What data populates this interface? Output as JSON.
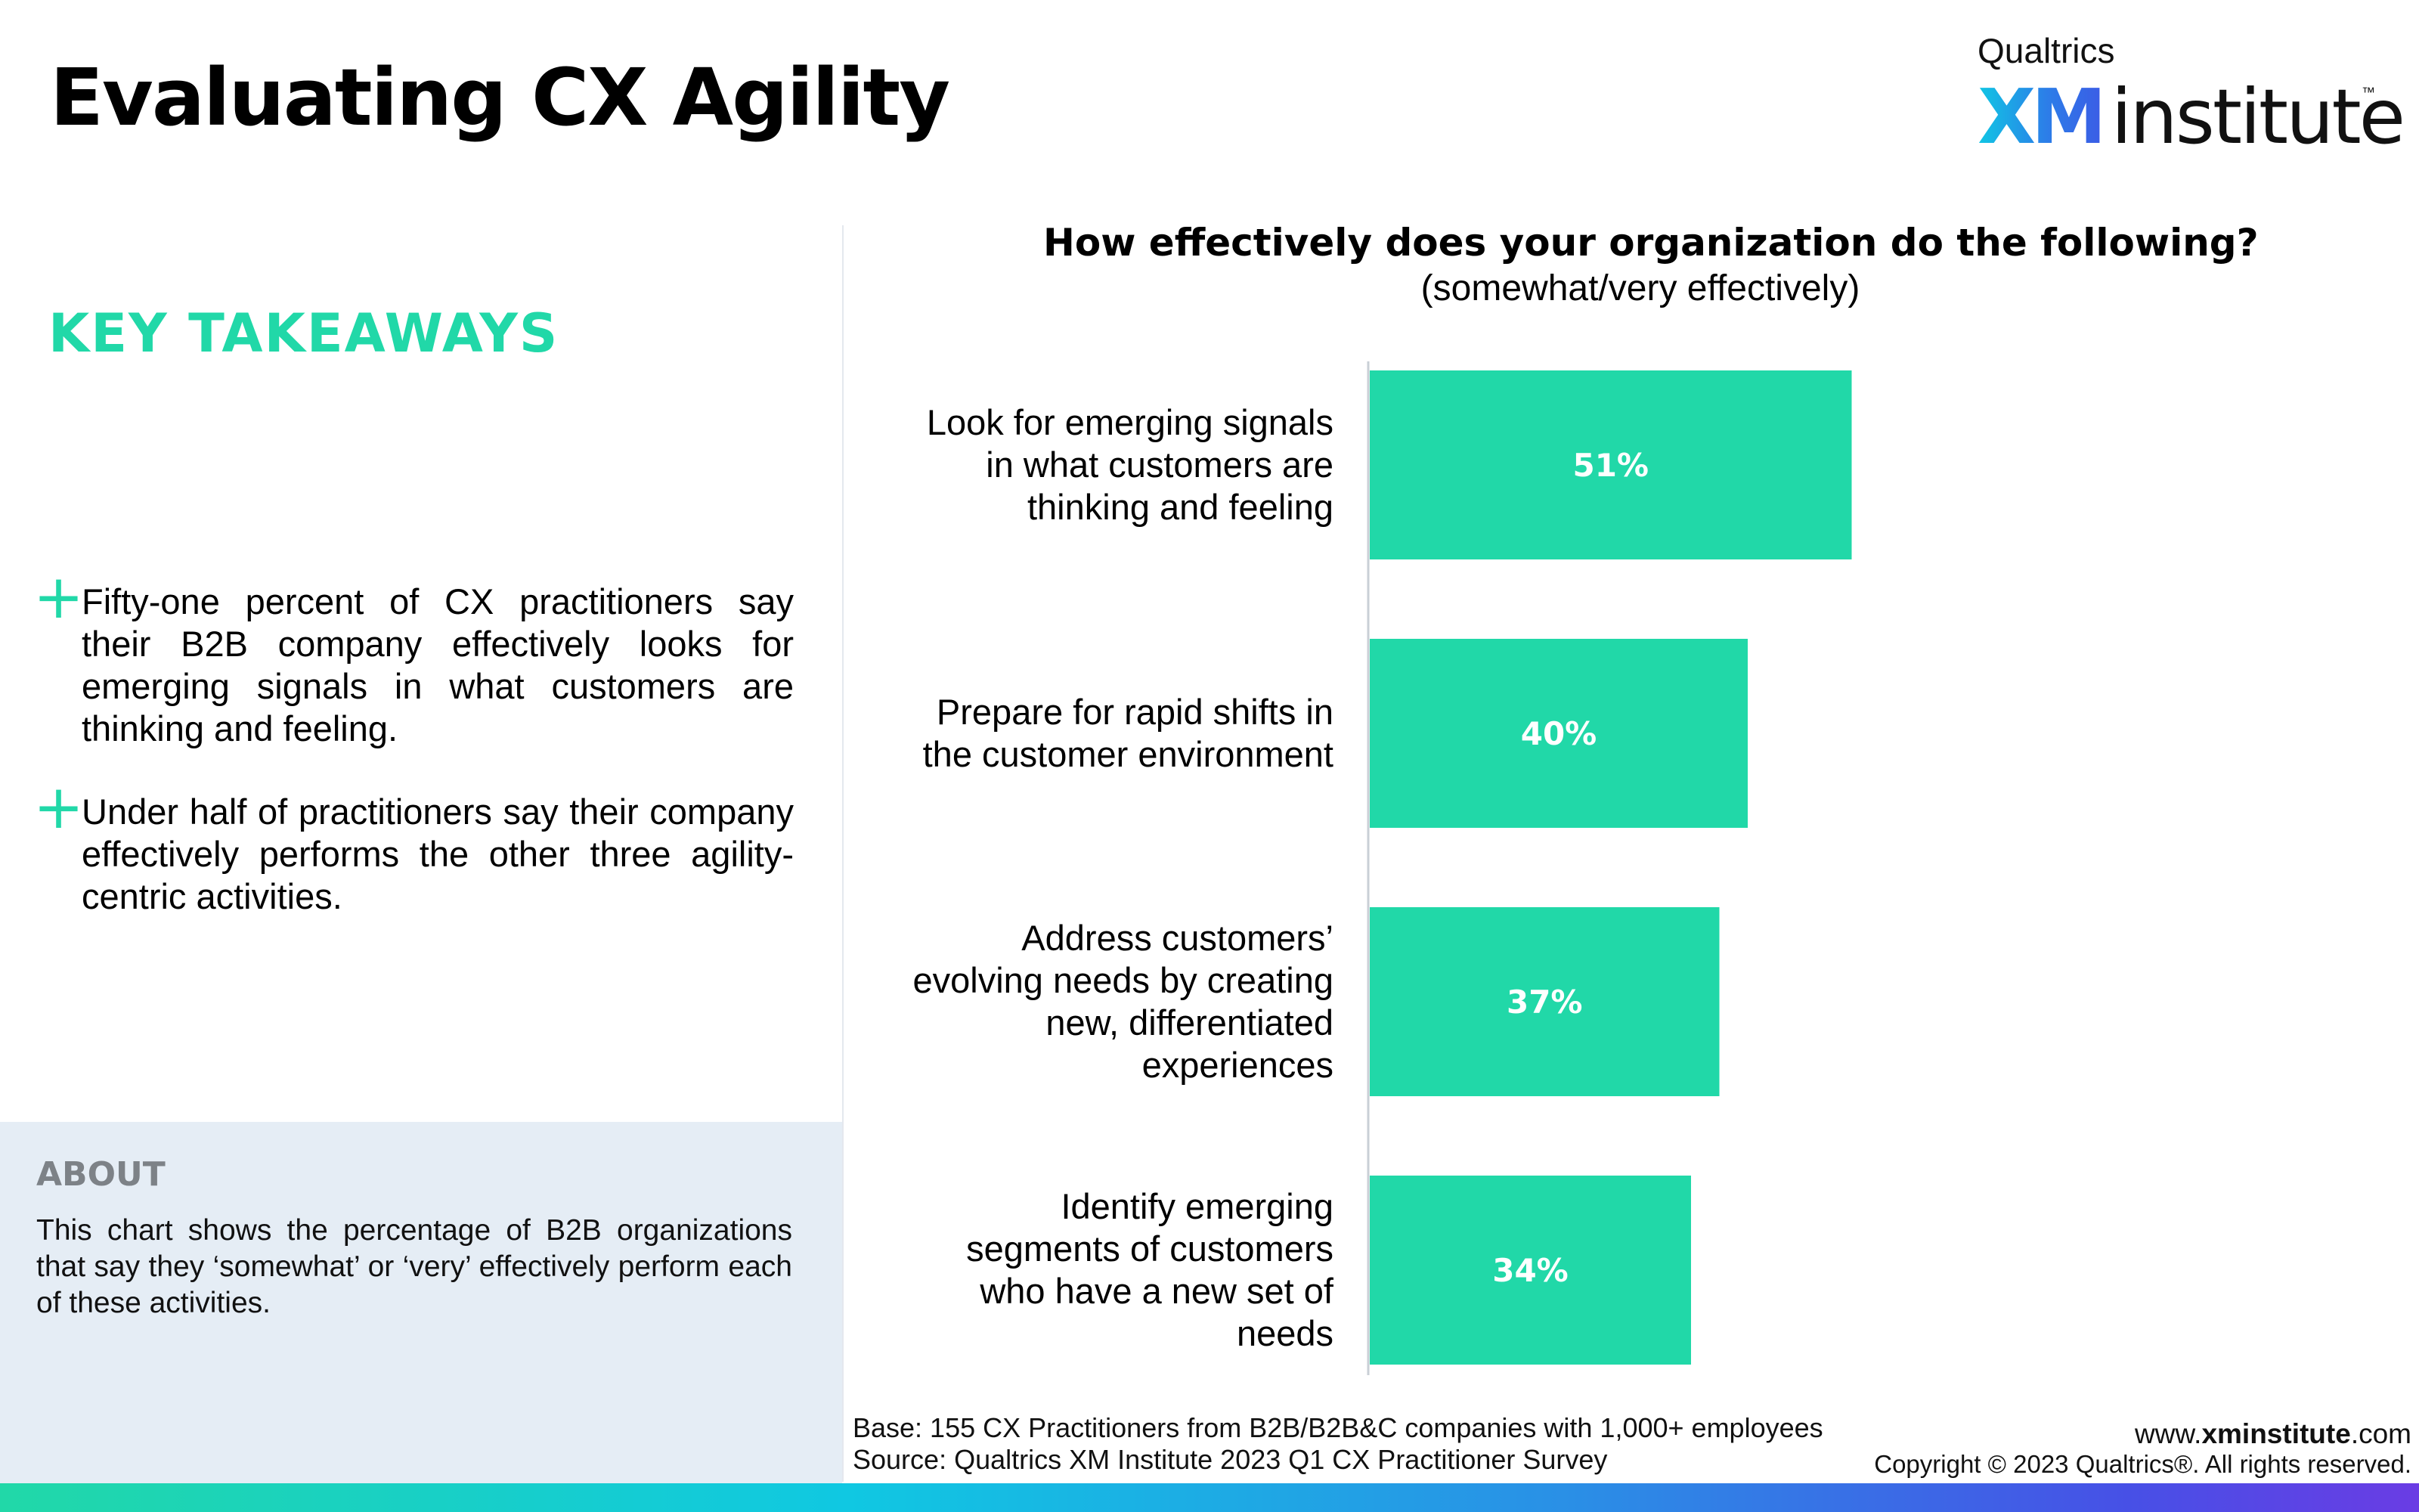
{
  "page": {
    "title": "Evaluating CX Agility"
  },
  "logo": {
    "company": "Qualtrics",
    "brand_mark": "XM",
    "brand_word": "institute",
    "trademark": "™"
  },
  "takeaways": {
    "heading": "KEY TAKEAWAYS",
    "items": [
      "Fifty-one percent of CX practitioners say their B2B company effectively looks for emerging signals in what customers are thinking and feeling.",
      "Under half of practitioners say their company effectively performs the other three agility-centric activities."
    ]
  },
  "about": {
    "heading": "ABOUT",
    "text": "This chart shows the percentage of B2B organizations that say they ‘somewhat’ or ‘very’ effectively perform each of these activities."
  },
  "chart_data": {
    "type": "bar",
    "orientation": "horizontal",
    "title": "How effectively does your organization do the following?",
    "subtitle": "(somewhat/very effectively)",
    "categories": [
      "Look for emerging signals in what customers are thinking and feeling",
      "Prepare for rapid shifts in the customer environment",
      "Address customers’ evolving needs by creating new, differentiated experiences",
      "Identify emerging segments of customers who have a new set of needs"
    ],
    "category_lines": [
      [
        "Look for emerging signals",
        "in what customers are",
        "thinking and feeling"
      ],
      [
        "Prepare for rapid shifts in",
        "the customer environment"
      ],
      [
        "Address customers’",
        "evolving needs by creating",
        "new, differentiated",
        "experiences"
      ],
      [
        "Identify emerging",
        "segments of customers",
        "who have a new set of",
        "needs"
      ]
    ],
    "values": [
      51,
      40,
      37,
      34
    ],
    "value_labels": [
      "51%",
      "40%",
      "37%",
      "34%"
    ],
    "unit": "%",
    "xlim": [
      0,
      100
    ],
    "grid": false,
    "bar_color": "#21d8a8",
    "label_color": "#ffffff"
  },
  "footer": {
    "base": "Base: 155 CX Practitioners from B2B/B2B&C companies with 1,000+ employees",
    "source": "Source: Qualtrics XM Institute 2023 Q1 CX Practitioner Survey",
    "site_prefix": "www.",
    "site_bold": "xminstitute",
    "site_suffix": ".com",
    "copyright": "Copyright © 2023 Qualtrics®. All rights reserved."
  },
  "colors": {
    "accent": "#21d8a8",
    "about_bg": "#e5edf5",
    "about_heading": "#7d8287"
  }
}
